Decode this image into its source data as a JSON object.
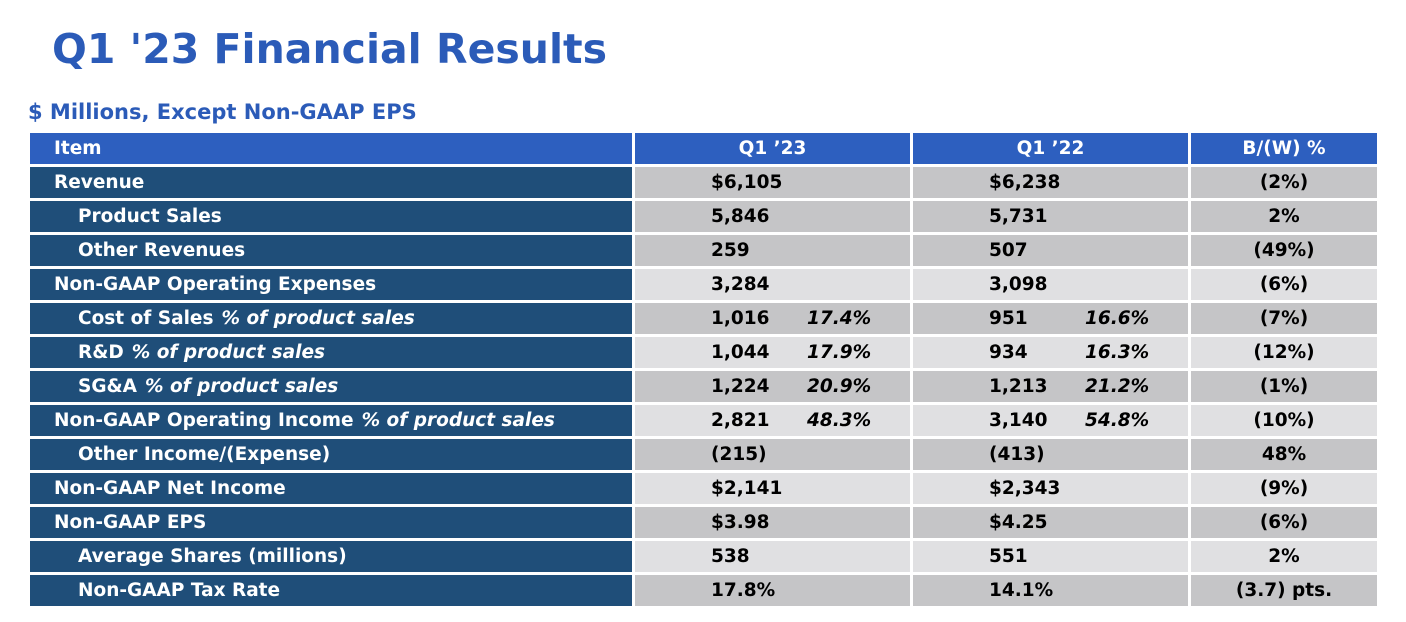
{
  "title": "Q1 '23 Financial Results",
  "subtitle": "$ Millions, Except Non-GAAP EPS",
  "table": {
    "headers": {
      "item": "Item",
      "current": "Q1 ’23",
      "prior": "Q1 ’22",
      "bw": "B/(W) %"
    },
    "rows": [
      {
        "item": "Revenue",
        "pct_note": "",
        "current": "$6,105",
        "current_ratio": "",
        "prior": "$6,238",
        "prior_ratio": "",
        "bw": "(2%)"
      },
      {
        "item": "Product Sales",
        "pct_note": "",
        "current": "5,846",
        "current_ratio": "",
        "prior": "5,731",
        "prior_ratio": "",
        "bw": "2%"
      },
      {
        "item": "Other Revenues",
        "pct_note": "",
        "current": "259",
        "current_ratio": "",
        "prior": "507",
        "prior_ratio": "",
        "bw": "(49%)"
      },
      {
        "item": "Non-GAAP Operating Expenses",
        "pct_note": "",
        "current": "3,284",
        "current_ratio": "",
        "prior": "3,098",
        "prior_ratio": "",
        "bw": "(6%)"
      },
      {
        "item": "Cost of Sales",
        "pct_note": "% of product sales",
        "current": "1,016",
        "current_ratio": "17.4%",
        "prior": "951",
        "prior_ratio": "16.6%",
        "bw": "(7%)"
      },
      {
        "item": "R&D",
        "pct_note": "% of product sales",
        "current": "1,044",
        "current_ratio": "17.9%",
        "prior": "934",
        "prior_ratio": "16.3%",
        "bw": "(12%)"
      },
      {
        "item": "SG&A",
        "pct_note": "% of product sales",
        "current": "1,224",
        "current_ratio": "20.9%",
        "prior": "1,213",
        "prior_ratio": "21.2%",
        "bw": "(1%)"
      },
      {
        "item": "Non-GAAP Operating Income",
        "pct_note": "% of product sales",
        "current": "2,821",
        "current_ratio": "48.3%",
        "prior": "3,140",
        "prior_ratio": "54.8%",
        "bw": "(10%)"
      },
      {
        "item": "Other Income/(Expense)",
        "pct_note": "",
        "current": "(215)",
        "current_ratio": "",
        "prior": "(413)",
        "prior_ratio": "",
        "bw": "48%"
      },
      {
        "item": "Non-GAAP Net Income",
        "pct_note": "",
        "current": "$2,141",
        "current_ratio": "",
        "prior": "$2,343",
        "prior_ratio": "",
        "bw": "(9%)"
      },
      {
        "item": "Non-GAAP EPS",
        "pct_note": "",
        "current": "$3.98",
        "current_ratio": "",
        "prior": "$4.25",
        "prior_ratio": "",
        "bw": "(6%)"
      },
      {
        "item": "Average Shares (millions)",
        "pct_note": "",
        "current": "538",
        "current_ratio": "",
        "prior": "551",
        "prior_ratio": "",
        "bw": "2%"
      },
      {
        "item": "Non-GAAP Tax Rate",
        "pct_note": "",
        "current": "17.8%",
        "current_ratio": "",
        "prior": "14.1%",
        "prior_ratio": "",
        "bw": "(3.7) pts."
      }
    ]
  },
  "colors": {
    "title": "#2b5bb8",
    "header_bg": "#2d5fbf",
    "item_bg": "#1f4e79",
    "row_dark": "#c5c5c7",
    "row_light": "#e0e0e2"
  }
}
